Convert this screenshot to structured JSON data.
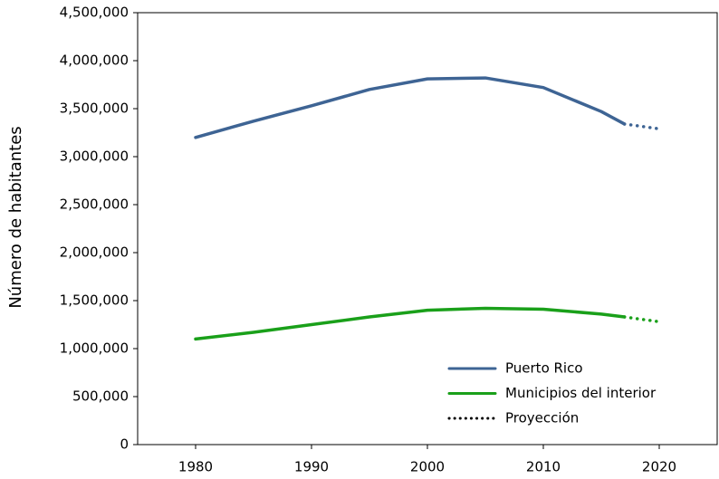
{
  "chart_data": {
    "type": "line",
    "y_label": "Número de habitantes",
    "x": [
      1980,
      1985,
      1990,
      1995,
      2000,
      2005,
      2010,
      2015,
      2017,
      2020
    ],
    "series": [
      {
        "name": "Puerto Rico",
        "color": "#3e6494",
        "values": [
          3200000,
          3370000,
          3530000,
          3700000,
          3810000,
          3820000,
          3720000,
          3470000,
          3340000,
          3290000
        ]
      },
      {
        "name": "Municipios del interior",
        "color": "#1aa01a",
        "values": [
          1100000,
          1170000,
          1250000,
          1330000,
          1400000,
          1420000,
          1410000,
          1360000,
          1330000,
          1280000
        ]
      }
    ],
    "projection": {
      "name": "Proyección",
      "color": "#000000",
      "from_x": 2017
    },
    "xlim": [
      1975,
      2025
    ],
    "xticks": [
      1980,
      1990,
      2000,
      2010,
      2020
    ],
    "ylim": [
      0,
      4500000
    ],
    "yticks": [
      0,
      {
        "value": 500000,
        "label": "500,000"
      },
      {
        "value": 1000000,
        "label": "1,000,000"
      },
      {
        "value": 1500000,
        "label": "1,500,000"
      },
      {
        "value": 2000000,
        "label": "2,000,000"
      },
      {
        "value": 2500000,
        "label": "2,500,000"
      },
      {
        "value": 3000000,
        "label": "3,000,000"
      },
      {
        "value": 3500000,
        "label": "3,500,000"
      },
      {
        "value": 4000000,
        "label": "4,000,000"
      },
      {
        "value": 4500000,
        "label": "4,500,000"
      }
    ],
    "legend": "lower right"
  }
}
